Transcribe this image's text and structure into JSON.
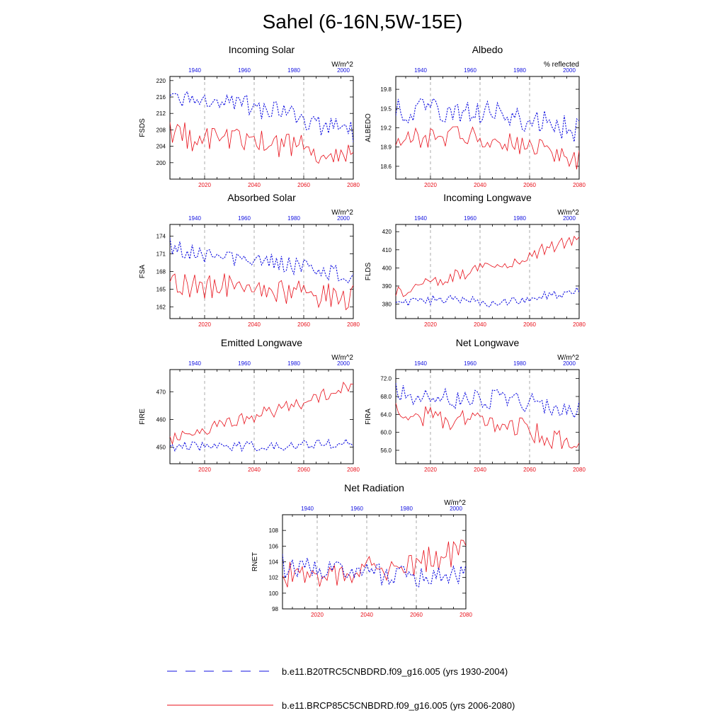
{
  "page_title": "Sahel (6-16N,5W-15E)",
  "colors": {
    "red": "#e8101a",
    "blue": "#1010e0",
    "text": "#000000"
  },
  "legend": [
    {
      "label": "b.e11.B20TRC5CNBDRD.f09_g16.005 (yrs 1930-2004)",
      "color": "#1010e0",
      "dash": true
    },
    {
      "label": "b.e11.BRCP85C5CNBDRD.f09_g16.005 (yrs 2006-2080)",
      "color": "#e8101a",
      "dash": false
    }
  ],
  "chart_data": [
    {
      "type": "line",
      "title": "Incoming Solar",
      "units": "W/m^2",
      "ylabel": "FSDS",
      "ylim": [
        196,
        221
      ],
      "yticks": [
        200,
        204,
        208,
        212,
        216,
        220
      ],
      "ydec": 0,
      "x_bottom_label_years": [
        2020,
        2040,
        2060,
        2080
      ],
      "x_top_label_years": [
        1940,
        1960,
        1980,
        2000
      ],
      "series": [
        {
          "name": "b.e11.B20TRC5CNBDRD.f09_g16.005 (yrs 1930-2004)",
          "style": "dash",
          "trend": [
            217.5,
            214.5,
            215.0,
            213.0,
            211.5,
            209.0,
            207.5
          ],
          "amp": 2.5,
          "seed": 3
        },
        {
          "name": "b.e11.BRCP85C5CNBDRD.f09_g16.005 (yrs 2006-2080)",
          "style": "solid",
          "trend": [
            207.0,
            206.0,
            205.5,
            205.0,
            204.5,
            203.0,
            202.0
          ],
          "amp": 3.5,
          "seed": 11
        }
      ]
    },
    {
      "type": "line",
      "title": "Albedo",
      "units": "% reflected",
      "ylabel": "ALBEDO",
      "ylim": [
        18.4,
        20.0
      ],
      "yticks": [
        18.6,
        18.9,
        19.2,
        19.5,
        19.8
      ],
      "ydec": 1,
      "x_bottom_label_years": [
        2020,
        2040,
        2060,
        2080
      ],
      "x_top_label_years": [
        1940,
        1960,
        1980,
        2000
      ],
      "series": [
        {
          "name": "b.e11.B20TRC5CNBDRD.f09_g16.005 (yrs 1930-2004)",
          "style": "dash",
          "trend": [
            19.5,
            19.45,
            19.5,
            19.45,
            19.35,
            19.25,
            19.15
          ],
          "amp": 0.2,
          "seed": 5
        },
        {
          "name": "b.e11.BRCP85C5CNBDRD.f09_g16.005 (yrs 2006-2080)",
          "style": "solid",
          "trend": [
            19.05,
            19.05,
            19.1,
            19.05,
            18.95,
            18.85,
            18.7
          ],
          "amp": 0.18,
          "seed": 17
        }
      ]
    },
    {
      "type": "line",
      "title": "Absorbed Solar",
      "units": "W/m^2",
      "ylabel": "FSA",
      "ylim": [
        160,
        176
      ],
      "yticks": [
        162,
        165,
        168,
        171,
        174
      ],
      "ydec": 0,
      "x_bottom_label_years": [
        2020,
        2040,
        2060,
        2080
      ],
      "x_top_label_years": [
        1940,
        1960,
        1980,
        2000
      ],
      "series": [
        {
          "name": "b.e11.B20TRC5CNBDRD.f09_g16.005 (yrs 1930-2004)",
          "style": "dash",
          "trend": [
            172.5,
            171.0,
            170.5,
            170.0,
            169.0,
            168.0,
            167.0
          ],
          "amp": 1.5,
          "seed": 7
        },
        {
          "name": "b.e11.BRCP85C5CNBDRD.f09_g16.005 (yrs 2006-2080)",
          "style": "solid",
          "trend": [
            166.0,
            165.5,
            165.5,
            165.0,
            164.5,
            164.0,
            163.5
          ],
          "amp": 2.2,
          "seed": 23
        }
      ]
    },
    {
      "type": "line",
      "title": "Incoming Longwave",
      "units": "W/m^2",
      "ylabel": "FLDS",
      "ylim": [
        372,
        424
      ],
      "yticks": [
        380,
        390,
        400,
        410,
        420
      ],
      "ydec": 0,
      "x_bottom_label_years": [
        2020,
        2040,
        2060,
        2080
      ],
      "x_top_label_years": [
        1940,
        1960,
        1980,
        2000
      ],
      "series": [
        {
          "name": "b.e11.B20TRC5CNBDRD.f09_g16.005 (yrs 1930-2004)",
          "style": "dash",
          "trend": [
            380.0,
            382.0,
            383.0,
            381.0,
            382.0,
            385.0,
            387.0
          ],
          "amp": 2.5,
          "seed": 9
        },
        {
          "name": "b.e11.BRCP85C5CNBDRD.f09_g16.005 (yrs 2006-2080)",
          "style": "solid",
          "trend": [
            386.0,
            392.0,
            396.0,
            400.0,
            405.0,
            411.0,
            417.0
          ],
          "amp": 3.5,
          "seed": 29
        }
      ]
    },
    {
      "type": "line",
      "title": "Emitted Longwave",
      "units": "W/m^2",
      "ylabel": "FIRE",
      "ylim": [
        444,
        478
      ],
      "yticks": [
        450,
        460,
        470
      ],
      "ydec": 0,
      "x_bottom_label_years": [
        2020,
        2040,
        2060,
        2080
      ],
      "x_top_label_years": [
        1940,
        1960,
        1980,
        2000
      ],
      "series": [
        {
          "name": "b.e11.B20TRC5CNBDRD.f09_g16.005 (yrs 1930-2004)",
          "style": "dash",
          "trend": [
            450.0,
            450.5,
            450.5,
            450.0,
            450.5,
            451.0,
            451.5
          ],
          "amp": 1.8,
          "seed": 13
        },
        {
          "name": "b.e11.BRCP85C5CNBDRD.f09_g16.005 (yrs 2006-2080)",
          "style": "solid",
          "trend": [
            453.0,
            456.0,
            459.0,
            462.0,
            465.0,
            469.0,
            472.0
          ],
          "amp": 2.5,
          "seed": 31
        }
      ]
    },
    {
      "type": "line",
      "title": "Net Longwave",
      "units": "W/m^2",
      "ylabel": "FIRA",
      "ylim": [
        53.0,
        74.0
      ],
      "yticks": [
        56.0,
        60.0,
        64.0,
        68.0,
        72.0
      ],
      "ydec": 1,
      "x_bottom_label_years": [
        2020,
        2040,
        2060,
        2080
      ],
      "x_top_label_years": [
        1940,
        1960,
        1980,
        2000
      ],
      "series": [
        {
          "name": "b.e11.B20TRC5CNBDRD.f09_g16.005 (yrs 1930-2004)",
          "style": "dash",
          "trend": [
            69.0,
            68.0,
            67.5,
            67.5,
            67.0,
            66.0,
            65.0
          ],
          "amp": 2.2,
          "seed": 19
        },
        {
          "name": "b.e11.BRCP85C5CNBDRD.f09_g16.005 (yrs 2006-2080)",
          "style": "solid",
          "trend": [
            64.5,
            63.5,
            62.5,
            62.0,
            61.0,
            59.0,
            57.5
          ],
          "amp": 2.5,
          "seed": 37
        }
      ]
    },
    {
      "type": "line",
      "title": "Net Radiation",
      "units": "W/m^2",
      "ylabel": "RNET",
      "ylim": [
        98,
        110
      ],
      "yticks": [
        98,
        100,
        102,
        104,
        106,
        108
      ],
      "ydec": 0,
      "x_bottom_label_years": [
        2020,
        2040,
        2060,
        2080
      ],
      "x_top_label_years": [
        1940,
        1960,
        1980,
        2000
      ],
      "series": [
        {
          "name": "b.e11.B20TRC5CNBDRD.f09_g16.005 (yrs 1930-2004)",
          "style": "dash",
          "trend": [
            103.5,
            103.0,
            102.5,
            102.5,
            102.0,
            102.0,
            102.5
          ],
          "amp": 1.5,
          "seed": 41
        },
        {
          "name": "b.e11.BRCP85C5CNBDRD.f09_g16.005 (yrs 2006-2080)",
          "style": "solid",
          "trend": [
            102.5,
            102.5,
            102.5,
            103.0,
            103.5,
            104.5,
            105.5
          ],
          "amp": 1.8,
          "seed": 43
        }
      ]
    }
  ]
}
